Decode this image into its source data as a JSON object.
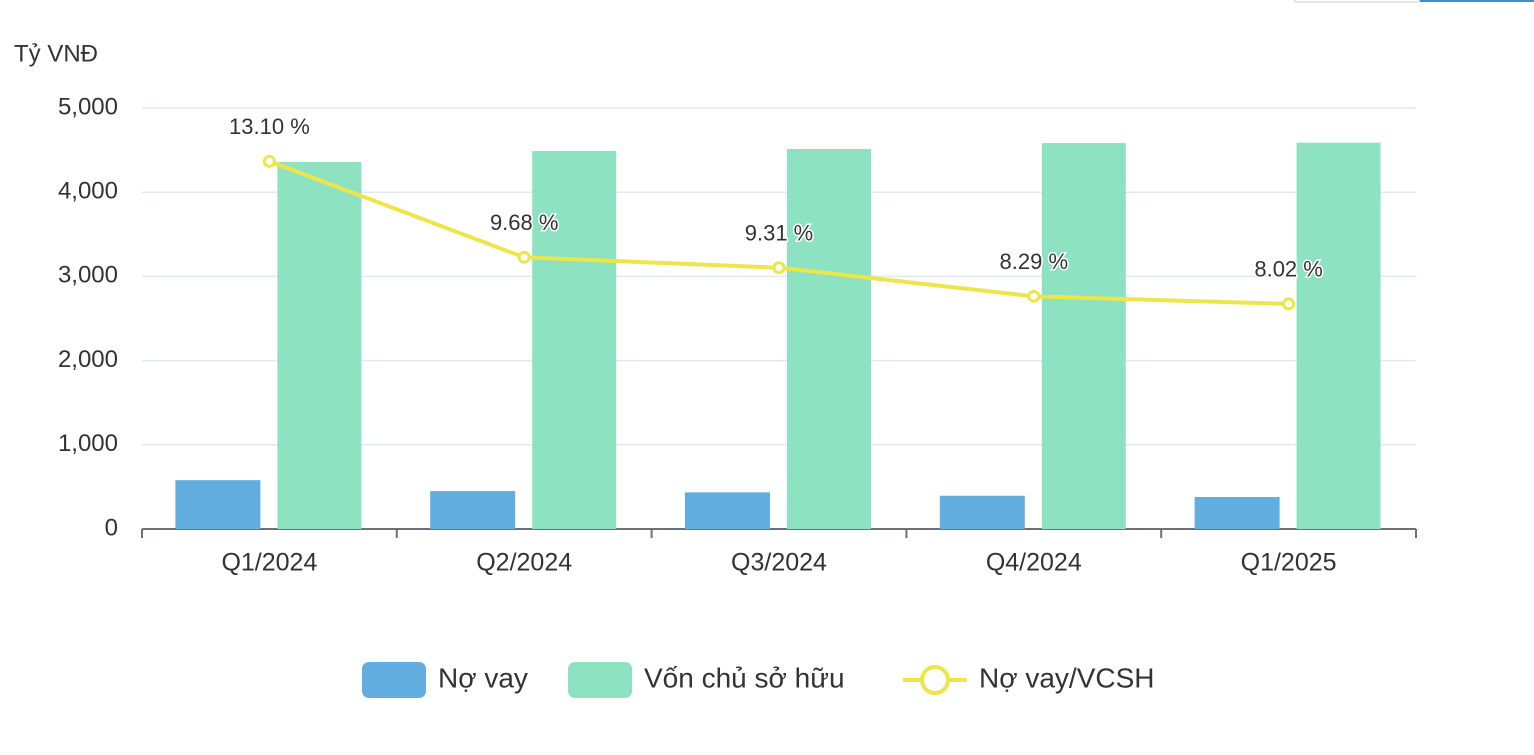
{
  "chart_data": {
    "type": "bar-line",
    "y_axis_label": "Tỷ VNĐ",
    "categories": [
      "Q1/2024",
      "Q2/2024",
      "Q3/2024",
      "Q4/2024",
      "Q1/2025"
    ],
    "series": [
      {
        "name": "Nợ vay",
        "type": "bar",
        "color": "#62aee0",
        "values": [
          580,
          450,
          435,
          395,
          380
        ]
      },
      {
        "name": "Vốn chủ sở hữu",
        "type": "bar",
        "color": "#8de3c1",
        "values": [
          4360,
          4490,
          4513,
          4584,
          4588
        ]
      },
      {
        "name": "Nợ vay/VCSH",
        "type": "line",
        "axis": "y2",
        "color": "#ede64a",
        "values": [
          13.1,
          9.68,
          9.31,
          8.29,
          8.02
        ],
        "value_labels": [
          "13.10 %",
          "9.68 %",
          "9.31 %",
          "8.29 %",
          "8.02 %"
        ]
      }
    ],
    "ylim": [
      0,
      5000
    ],
    "yticks": [
      0,
      {
        "value": 1000,
        "label": "1,000"
      },
      {
        "value": 2000,
        "label": "2,000"
      },
      {
        "value": 3000,
        "label": "3,000"
      },
      {
        "value": 4000,
        "label": "4,000"
      },
      {
        "value": 5000,
        "label": "5,000"
      }
    ],
    "y2lim": [
      0,
      15
    ],
    "grid": true
  }
}
